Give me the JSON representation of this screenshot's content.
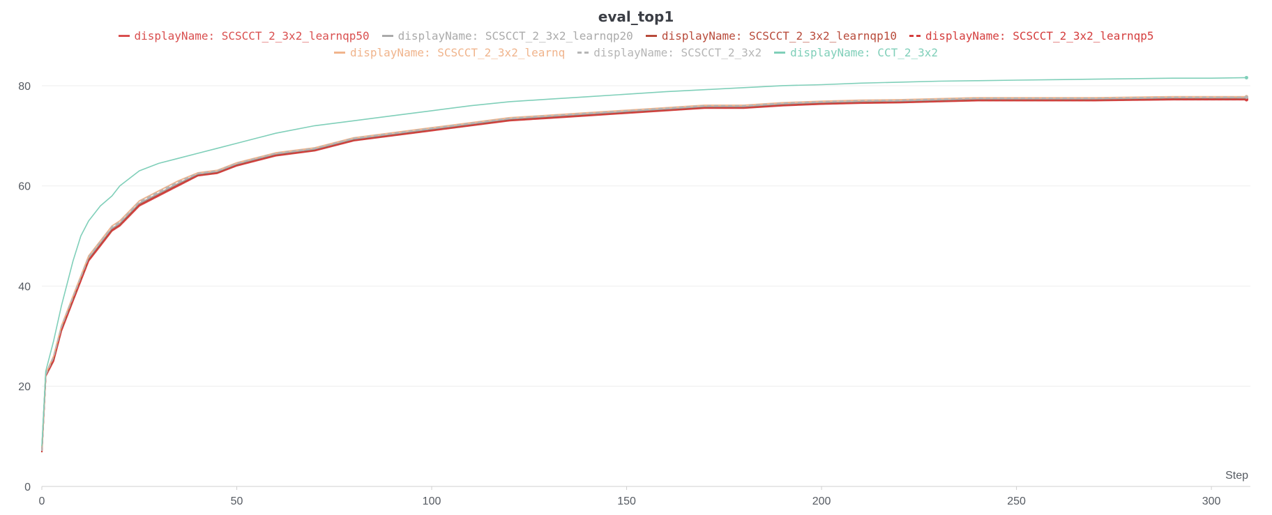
{
  "chart_data": {
    "type": "line",
    "title": "eval_top1",
    "xlabel": "Step",
    "ylabel": "",
    "xlim": [
      0,
      310
    ],
    "ylim": [
      0,
      85
    ],
    "xticks": [
      "0",
      "50",
      "100",
      "150",
      "200",
      "250",
      "300"
    ],
    "yticks": [
      "0",
      "20",
      "40",
      "60",
      "80"
    ],
    "grid": true,
    "legend_position": "top-center",
    "series": [
      {
        "name": "displayName: SCSCCT_2_3x2_learnqp50",
        "color": "#d94f4f",
        "style": "solid",
        "points": [
          [
            0,
            7
          ],
          [
            1,
            22
          ],
          [
            3,
            25
          ],
          [
            5,
            31
          ],
          [
            8,
            37
          ],
          [
            10,
            41
          ],
          [
            12,
            45
          ],
          [
            15,
            48
          ],
          [
            18,
            51
          ],
          [
            20,
            52
          ],
          [
            25,
            56
          ],
          [
            30,
            58
          ],
          [
            35,
            60
          ],
          [
            40,
            62
          ],
          [
            45,
            62.5
          ],
          [
            50,
            64
          ],
          [
            55,
            65
          ],
          [
            60,
            66
          ],
          [
            70,
            67
          ],
          [
            80,
            69
          ],
          [
            90,
            70
          ],
          [
            100,
            71
          ],
          [
            110,
            72
          ],
          [
            120,
            73
          ],
          [
            130,
            73.5
          ],
          [
            140,
            74
          ],
          [
            150,
            74.5
          ],
          [
            160,
            75
          ],
          [
            170,
            75.5
          ],
          [
            180,
            75.5
          ],
          [
            190,
            76
          ],
          [
            200,
            76.3
          ],
          [
            210,
            76.5
          ],
          [
            220,
            76.6
          ],
          [
            230,
            76.8
          ],
          [
            240,
            77
          ],
          [
            250,
            77
          ],
          [
            260,
            77
          ],
          [
            270,
            77
          ],
          [
            280,
            77.1
          ],
          [
            290,
            77.2
          ],
          [
            300,
            77.2
          ],
          [
            309,
            77.2
          ]
        ]
      },
      {
        "name": "displayName: SCSCCT_2_3x2_learnqp20",
        "color": "#aaaaaa",
        "style": "solid",
        "points": [
          [
            0,
            7
          ],
          [
            1,
            22
          ],
          [
            3,
            25.5
          ],
          [
            5,
            31.5
          ],
          [
            8,
            37.5
          ],
          [
            10,
            41.5
          ],
          [
            12,
            45.5
          ],
          [
            15,
            48.5
          ],
          [
            18,
            51.5
          ],
          [
            20,
            52.5
          ],
          [
            25,
            56.5
          ],
          [
            30,
            58.5
          ],
          [
            35,
            60.5
          ],
          [
            40,
            62.3
          ],
          [
            45,
            62.8
          ],
          [
            50,
            64.3
          ],
          [
            55,
            65.3
          ],
          [
            60,
            66.3
          ],
          [
            70,
            67.3
          ],
          [
            80,
            69.3
          ],
          [
            90,
            70.3
          ],
          [
            100,
            71.3
          ],
          [
            110,
            72.3
          ],
          [
            120,
            73.3
          ],
          [
            130,
            73.8
          ],
          [
            140,
            74.3
          ],
          [
            150,
            74.8
          ],
          [
            160,
            75.3
          ],
          [
            170,
            75.8
          ],
          [
            180,
            75.8
          ],
          [
            190,
            76.3
          ],
          [
            200,
            76.6
          ],
          [
            210,
            76.8
          ],
          [
            220,
            76.9
          ],
          [
            230,
            77.1
          ],
          [
            240,
            77.3
          ],
          [
            250,
            77.3
          ],
          [
            260,
            77.3
          ],
          [
            270,
            77.3
          ],
          [
            280,
            77.4
          ],
          [
            290,
            77.5
          ],
          [
            300,
            77.5
          ],
          [
            309,
            77.6
          ]
        ]
      },
      {
        "name": "displayName: SCSCCT_2_3x2_learnqp10",
        "color": "#b84a3a",
        "style": "solid",
        "points": [
          [
            0,
            6.8
          ],
          [
            1,
            22.2
          ],
          [
            3,
            25.2
          ],
          [
            5,
            31.2
          ],
          [
            8,
            37.2
          ],
          [
            10,
            41.2
          ],
          [
            12,
            45.2
          ],
          [
            15,
            48.2
          ],
          [
            18,
            51.2
          ],
          [
            20,
            52.2
          ],
          [
            25,
            56.2
          ],
          [
            30,
            58.2
          ],
          [
            35,
            60.2
          ],
          [
            40,
            62.1
          ],
          [
            45,
            62.6
          ],
          [
            50,
            64.1
          ],
          [
            55,
            65.1
          ],
          [
            60,
            66.1
          ],
          [
            70,
            67.1
          ],
          [
            80,
            69.1
          ],
          [
            90,
            70.1
          ],
          [
            100,
            71.1
          ],
          [
            110,
            72.1
          ],
          [
            120,
            73.1
          ],
          [
            130,
            73.6
          ],
          [
            140,
            74.1
          ],
          [
            150,
            74.6
          ],
          [
            160,
            75.1
          ],
          [
            170,
            75.6
          ],
          [
            180,
            75.6
          ],
          [
            190,
            76.1
          ],
          [
            200,
            76.4
          ],
          [
            210,
            76.6
          ],
          [
            220,
            76.7
          ],
          [
            230,
            76.9
          ],
          [
            240,
            77.1
          ],
          [
            250,
            77.1
          ],
          [
            260,
            77.1
          ],
          [
            270,
            77.1
          ],
          [
            280,
            77.2
          ],
          [
            290,
            77.3
          ],
          [
            300,
            77.3
          ],
          [
            309,
            77.3
          ]
        ]
      },
      {
        "name": "displayName: SCSCCT_2_3x2_learnqp5",
        "color": "#d43d3d",
        "style": "dashed",
        "points": [
          [
            0,
            6.9
          ],
          [
            1,
            22.1
          ],
          [
            3,
            25.1
          ],
          [
            5,
            31.1
          ],
          [
            8,
            37.1
          ],
          [
            10,
            41.1
          ],
          [
            12,
            45.1
          ],
          [
            15,
            48.1
          ],
          [
            18,
            51.1
          ],
          [
            20,
            52.1
          ],
          [
            25,
            56.1
          ],
          [
            30,
            58.1
          ],
          [
            35,
            60.1
          ],
          [
            40,
            62.05
          ],
          [
            45,
            62.55
          ],
          [
            50,
            64.05
          ],
          [
            55,
            65.05
          ],
          [
            60,
            66.05
          ],
          [
            70,
            67.05
          ],
          [
            80,
            69.05
          ],
          [
            90,
            70.05
          ],
          [
            100,
            71.05
          ],
          [
            110,
            72.05
          ],
          [
            120,
            73.05
          ],
          [
            130,
            73.55
          ],
          [
            140,
            74.05
          ],
          [
            150,
            74.55
          ],
          [
            160,
            75.05
          ],
          [
            170,
            75.55
          ],
          [
            180,
            75.55
          ],
          [
            190,
            76.05
          ],
          [
            200,
            76.35
          ],
          [
            210,
            76.55
          ],
          [
            220,
            76.65
          ],
          [
            230,
            76.85
          ],
          [
            240,
            77.05
          ],
          [
            250,
            77.05
          ],
          [
            260,
            77.05
          ],
          [
            270,
            77.05
          ],
          [
            280,
            77.15
          ],
          [
            290,
            77.25
          ],
          [
            300,
            77.25
          ],
          [
            309,
            77.25
          ]
        ]
      },
      {
        "name": "displayName: SCSCCT_2_3x2_learnq",
        "color": "#f0b48c",
        "style": "solid",
        "points": [
          [
            0,
            7.2
          ],
          [
            1,
            22.5
          ],
          [
            3,
            26
          ],
          [
            5,
            32
          ],
          [
            8,
            38
          ],
          [
            10,
            42
          ],
          [
            12,
            46
          ],
          [
            15,
            49
          ],
          [
            18,
            52
          ],
          [
            20,
            53
          ],
          [
            25,
            57
          ],
          [
            30,
            59
          ],
          [
            35,
            61
          ],
          [
            40,
            62.6
          ],
          [
            45,
            63.1
          ],
          [
            50,
            64.6
          ],
          [
            55,
            65.6
          ],
          [
            60,
            66.6
          ],
          [
            70,
            67.6
          ],
          [
            80,
            69.6
          ],
          [
            90,
            70.6
          ],
          [
            100,
            71.6
          ],
          [
            110,
            72.6
          ],
          [
            120,
            73.6
          ],
          [
            130,
            74.1
          ],
          [
            140,
            74.6
          ],
          [
            150,
            75.1
          ],
          [
            160,
            75.6
          ],
          [
            170,
            76.1
          ],
          [
            180,
            76.1
          ],
          [
            190,
            76.6
          ],
          [
            200,
            76.9
          ],
          [
            210,
            77.1
          ],
          [
            220,
            77.2
          ],
          [
            230,
            77.4
          ],
          [
            240,
            77.6
          ],
          [
            250,
            77.6
          ],
          [
            260,
            77.6
          ],
          [
            270,
            77.6
          ],
          [
            280,
            77.7
          ],
          [
            290,
            77.8
          ],
          [
            300,
            77.8
          ],
          [
            309,
            77.8
          ]
        ]
      },
      {
        "name": "displayName: SCSCCT_2_3x2",
        "color": "#b5b5b5",
        "style": "dashed",
        "points": [
          [
            0,
            7.1
          ],
          [
            1,
            22.3
          ],
          [
            3,
            25.8
          ],
          [
            5,
            31.8
          ],
          [
            8,
            37.8
          ],
          [
            10,
            41.8
          ],
          [
            12,
            45.8
          ],
          [
            15,
            48.8
          ],
          [
            18,
            51.8
          ],
          [
            20,
            52.8
          ],
          [
            25,
            56.8
          ],
          [
            30,
            58.8
          ],
          [
            35,
            60.8
          ],
          [
            40,
            62.5
          ],
          [
            45,
            63
          ],
          [
            50,
            64.5
          ],
          [
            55,
            65.5
          ],
          [
            60,
            66.5
          ],
          [
            70,
            67.5
          ],
          [
            80,
            69.5
          ],
          [
            90,
            70.5
          ],
          [
            100,
            71.5
          ],
          [
            110,
            72.5
          ],
          [
            120,
            73.5
          ],
          [
            130,
            74
          ],
          [
            140,
            74.5
          ],
          [
            150,
            75
          ],
          [
            160,
            75.5
          ],
          [
            170,
            76
          ],
          [
            180,
            76
          ],
          [
            190,
            76.5
          ],
          [
            200,
            76.8
          ],
          [
            210,
            77
          ],
          [
            220,
            77.1
          ],
          [
            230,
            77.3
          ],
          [
            240,
            77.5
          ],
          [
            250,
            77.5
          ],
          [
            260,
            77.5
          ],
          [
            270,
            77.5
          ],
          [
            280,
            77.6
          ],
          [
            290,
            77.7
          ],
          [
            300,
            77.7
          ],
          [
            309,
            77.7
          ]
        ]
      },
      {
        "name": "displayName: CCT_2_3x2",
        "color": "#7fcfb9",
        "style": "solid",
        "points": [
          [
            0,
            8
          ],
          [
            1,
            23
          ],
          [
            3,
            29
          ],
          [
            5,
            36
          ],
          [
            8,
            45
          ],
          [
            10,
            50
          ],
          [
            12,
            53
          ],
          [
            15,
            56
          ],
          [
            18,
            58
          ],
          [
            20,
            60
          ],
          [
            25,
            63
          ],
          [
            30,
            64.5
          ],
          [
            35,
            65.5
          ],
          [
            40,
            66.5
          ],
          [
            45,
            67.5
          ],
          [
            50,
            68.5
          ],
          [
            55,
            69.5
          ],
          [
            60,
            70.5
          ],
          [
            70,
            72
          ],
          [
            80,
            73
          ],
          [
            90,
            74
          ],
          [
            100,
            75
          ],
          [
            110,
            76
          ],
          [
            120,
            76.8
          ],
          [
            130,
            77.3
          ],
          [
            140,
            77.8
          ],
          [
            150,
            78.3
          ],
          [
            160,
            78.8
          ],
          [
            170,
            79.2
          ],
          [
            180,
            79.6
          ],
          [
            190,
            80
          ],
          [
            200,
            80.2
          ],
          [
            210,
            80.5
          ],
          [
            220,
            80.7
          ],
          [
            230,
            80.9
          ],
          [
            240,
            81
          ],
          [
            250,
            81.1
          ],
          [
            260,
            81.2
          ],
          [
            270,
            81.3
          ],
          [
            280,
            81.4
          ],
          [
            290,
            81.5
          ],
          [
            300,
            81.5
          ],
          [
            309,
            81.6
          ]
        ]
      }
    ]
  }
}
